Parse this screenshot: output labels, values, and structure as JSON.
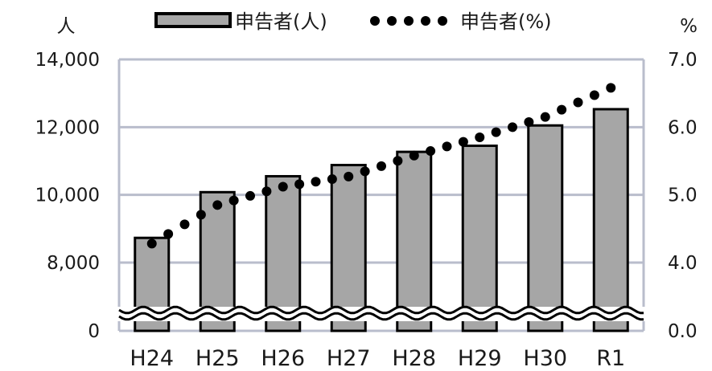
{
  "chart_data": {
    "type": "bar",
    "categories": [
      "H24",
      "H25",
      "H26",
      "H27",
      "H28",
      "H29",
      "H30",
      "R1"
    ],
    "series": [
      {
        "name": "申告者(人)",
        "type": "bar",
        "axis": "left",
        "values": [
          8730,
          10080,
          10550,
          10880,
          11270,
          11450,
          12050,
          12530
        ]
      },
      {
        "name": "申告者(%)",
        "type": "line",
        "style": "dotted",
        "axis": "right",
        "values": [
          4.28,
          4.85,
          5.12,
          5.27,
          5.58,
          5.85,
          6.15,
          6.58
        ]
      }
    ],
    "y_left": {
      "unit": "人",
      "ticks": [
        0,
        8000,
        10000,
        12000,
        14000
      ],
      "tick_labels": [
        "0",
        "8,000",
        "10,000",
        "12,000",
        "14,000"
      ],
      "ylim": [
        0,
        14000
      ],
      "axis_break": true
    },
    "y_right": {
      "unit": "%",
      "ticks": [
        0.0,
        4.0,
        5.0,
        6.0,
        7.0
      ],
      "tick_labels": [
        "0.0",
        "4.0",
        "5.0",
        "6.0",
        "7.0"
      ],
      "ylim": [
        0.0,
        7.0
      ],
      "axis_break": true
    },
    "grid": true,
    "legend": "top-center",
    "colors": {
      "bar_fill": "#a6a6a6",
      "bar_stroke": "#000000",
      "dot": "#000000",
      "grid": "#b9bdcc"
    }
  }
}
